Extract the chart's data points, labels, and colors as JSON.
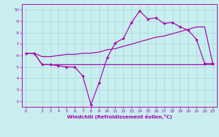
{
  "xlabel": "Windchill (Refroidissement éolien,°C)",
  "ylabel": "",
  "bg_color": "#c8eef0",
  "grid_color": "#a0d8d0",
  "line_color": "#aa00aa",
  "x_values": [
    0,
    1,
    2,
    3,
    4,
    5,
    6,
    7,
    8,
    9,
    10,
    11,
    12,
    13,
    14,
    15,
    16,
    17,
    18,
    19,
    20,
    21,
    22,
    23
  ],
  "y_main": [
    6.2,
    6.2,
    5.2,
    5.2,
    5.1,
    5.0,
    5.0,
    4.2,
    1.7,
    3.6,
    5.8,
    7.1,
    7.5,
    8.9,
    9.9,
    9.2,
    9.3,
    8.8,
    8.9,
    8.5,
    8.2,
    7.4,
    5.3,
    5.3
  ],
  "y_line1": [
    6.2,
    6.2,
    5.2,
    5.2,
    5.2,
    5.2,
    5.2,
    5.2,
    5.2,
    5.2,
    5.2,
    5.2,
    5.2,
    5.2,
    5.2,
    5.2,
    5.2,
    5.2,
    5.2,
    5.2,
    5.2,
    5.2,
    5.2,
    5.2
  ],
  "y_line2": [
    6.2,
    6.2,
    5.9,
    5.9,
    6.0,
    6.1,
    6.1,
    6.2,
    6.2,
    6.3,
    6.5,
    6.6,
    6.8,
    7.0,
    7.2,
    7.4,
    7.6,
    7.7,
    7.9,
    8.1,
    8.3,
    8.5,
    8.5,
    5.3
  ],
  "ylim": [
    1.5,
    10.5
  ],
  "xlim": [
    -0.5,
    23.5
  ],
  "yticks": [
    2,
    3,
    4,
    5,
    6,
    7,
    8,
    9,
    10
  ],
  "xticks": [
    0,
    2,
    3,
    4,
    5,
    6,
    7,
    8,
    9,
    10,
    11,
    12,
    13,
    14,
    15,
    16,
    17,
    18,
    19,
    20,
    21,
    22,
    23
  ]
}
